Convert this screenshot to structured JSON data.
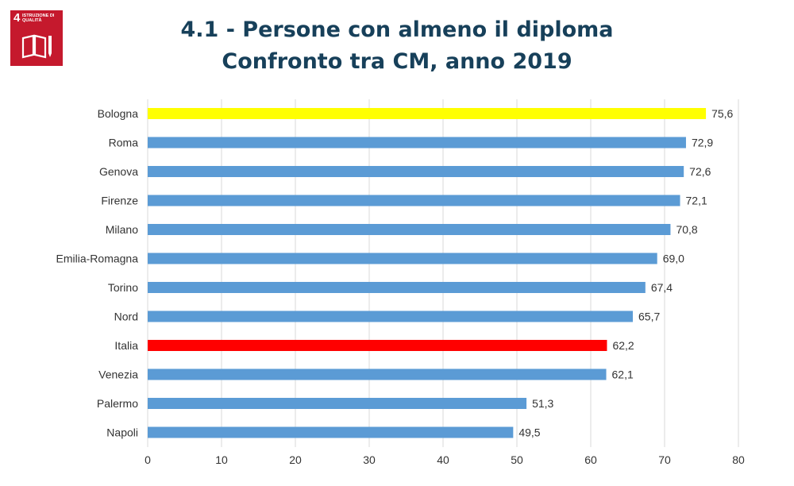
{
  "badge": {
    "number": "4",
    "text": "ISTRUZIONE DI QUALITÀ",
    "icon": "book-pencil-icon",
    "color": "#c5192d"
  },
  "header": {
    "title_line1": "4.1 - Persone con almeno il diploma",
    "title_line2": "Confronto tra CM, anno 2019",
    "color": "#17405a"
  },
  "chart_data": {
    "type": "bar",
    "orientation": "horizontal",
    "title": "4.1 - Persone con almeno il diploma Confronto tra CM, anno 2019",
    "categories": [
      "Bologna",
      "Roma",
      "Genova",
      "Firenze",
      "Milano",
      "Emilia-Romagna",
      "Torino",
      "Nord",
      "Italia",
      "Venezia",
      "Palermo",
      "Napoli"
    ],
    "values": [
      75.6,
      72.9,
      72.6,
      72.1,
      70.8,
      69.0,
      67.4,
      65.7,
      62.2,
      62.1,
      51.3,
      49.5
    ],
    "value_labels": [
      "75,6",
      "72,9",
      "72,6",
      "72,1",
      "70,8",
      "69,0",
      "67,4",
      "65,7",
      "62,2",
      "62,1",
      "51,3",
      "49,5"
    ],
    "colors": [
      "#ffff00",
      "#5b9bd5",
      "#5b9bd5",
      "#5b9bd5",
      "#5b9bd5",
      "#5b9bd5",
      "#5b9bd5",
      "#5b9bd5",
      "#ff0000",
      "#5b9bd5",
      "#5b9bd5",
      "#5b9bd5"
    ],
    "xlim": [
      0,
      80
    ],
    "ticks": [
      0,
      10,
      20,
      30,
      40,
      50,
      60,
      70,
      80
    ],
    "grid": true,
    "legend": "none",
    "xlabel": "",
    "ylabel": ""
  }
}
